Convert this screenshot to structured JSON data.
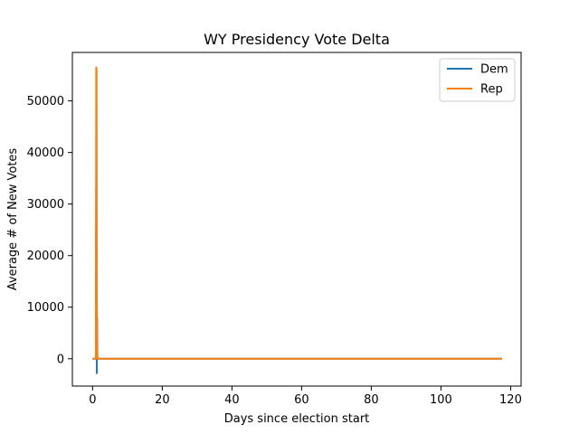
{
  "chart_data": {
    "type": "line",
    "title": "WY Presidency Vote Delta",
    "xlabel": "Days since election start",
    "ylabel": "Average # of New Votes",
    "xlim": [
      -5.8,
      123.0
    ],
    "ylim": [
      -5300,
      59400
    ],
    "xticks": [
      0,
      20,
      40,
      60,
      80,
      100,
      120
    ],
    "yticks": [
      0,
      10000,
      20000,
      30000,
      40000,
      50000
    ],
    "grid": false,
    "legend_position": "top-right",
    "series": [
      {
        "name": "Dem",
        "color": "#1f77b4",
        "x": [
          0,
          0.95,
          1.05,
          1.15,
          1.22,
          1.3,
          1.38,
          1.5,
          2,
          5,
          20,
          50,
          80,
          100,
          117.5
        ],
        "y": [
          0,
          0,
          33000,
          20000,
          -2800,
          8000,
          300,
          0,
          0,
          0,
          0,
          0,
          0,
          0,
          0
        ]
      },
      {
        "name": "Rep",
        "color": "#ff7f0e",
        "x": [
          0,
          0.95,
          1.05,
          1.15,
          1.22,
          1.3,
          1.4,
          1.5,
          2,
          5,
          20,
          50,
          80,
          100,
          117.5
        ],
        "y": [
          0,
          0,
          56500,
          56000,
          12000,
          2500,
          0,
          0,
          0,
          0,
          0,
          0,
          0,
          0,
          0
        ]
      }
    ]
  }
}
